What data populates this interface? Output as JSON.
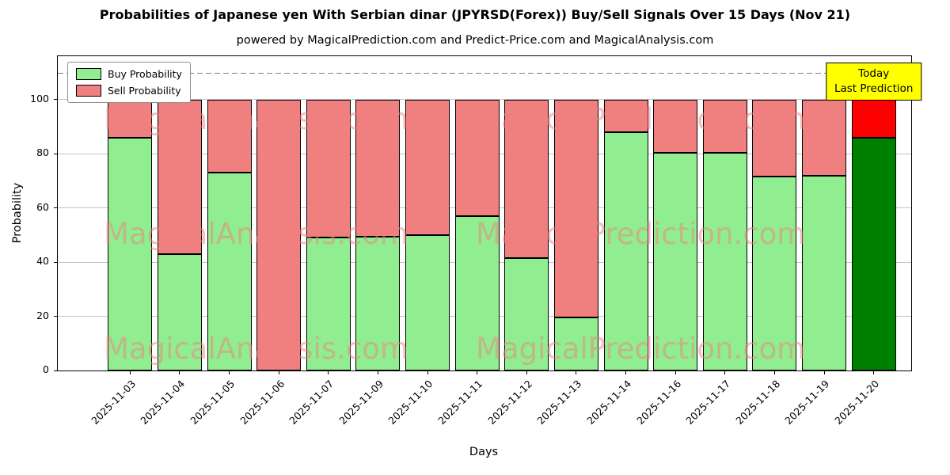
{
  "chart_data": {
    "type": "bar",
    "stacked": true,
    "title": "Probabilities of Japanese yen With Serbian dinar (JPYRSD(Forex)) Buy/Sell Signals Over 15 Days (Nov 21)",
    "subtitle": "powered by MagicalPrediction.com and Predict-Price.com and MagicalAnalysis.com",
    "xlabel": "Days",
    "ylabel": "Probability",
    "ylim": [
      0,
      116
    ],
    "yticks": [
      0,
      20,
      40,
      60,
      80,
      100
    ],
    "dashed_line_y": 110,
    "grid": true,
    "legend_loc": "upper left",
    "categories": [
      "2025-11-03",
      "2025-11-04",
      "2025-11-05",
      "2025-11-06",
      "2025-11-07",
      "2025-11-09",
      "2025-11-10",
      "2025-11-11",
      "2025-11-12",
      "2025-11-13",
      "2025-11-14",
      "2025-11-16",
      "2025-11-17",
      "2025-11-18",
      "2025-11-19",
      "2025-11-20"
    ],
    "series": [
      {
        "name": "Buy Probability",
        "color": "#90ee90",
        "values": [
          86,
          43,
          73,
          0,
          49,
          49.5,
          50,
          57,
          41.5,
          19.5,
          88,
          80.5,
          80.5,
          71.5,
          72,
          86
        ]
      },
      {
        "name": "Sell Probability",
        "color": "#f08080",
        "values": [
          14,
          57,
          27,
          100,
          51,
          50.5,
          50,
          43,
          58.5,
          80.5,
          12,
          19.5,
          19.5,
          28.5,
          28,
          14
        ]
      }
    ],
    "today": {
      "category": "2025-11-20",
      "buy_color": "#008000",
      "sell_color": "#ff0000"
    },
    "annotation": {
      "line1": "Today",
      "line2": "Last Prediction",
      "bg": "#ffff00"
    },
    "watermarks": [
      "MagicalAnalysis.com",
      "MagicalPrediction.com"
    ]
  }
}
